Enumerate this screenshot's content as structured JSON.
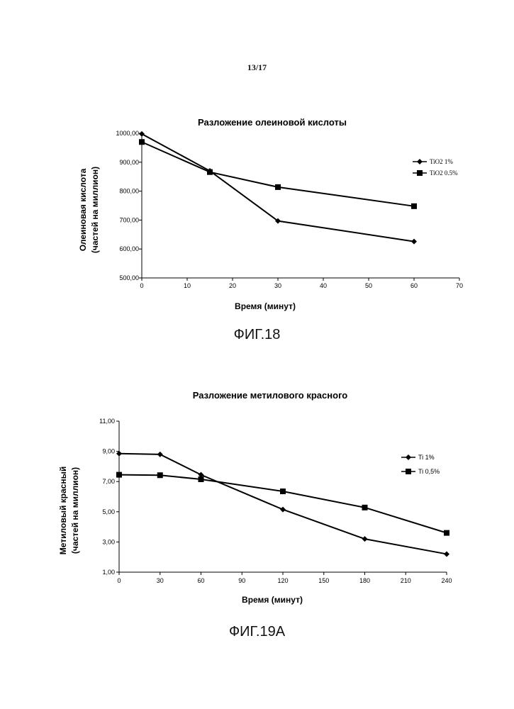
{
  "page": {
    "number": "13/17"
  },
  "figures": [
    {
      "caption": "ФИГ.18"
    },
    {
      "caption": "ФИГ.19А"
    }
  ],
  "chart_data": [
    {
      "type": "line",
      "title": "Разложение олеиновой кислоты",
      "xlabel": "Время (минут)",
      "ylabel_lines": [
        "Олеиновая кислота",
        "(частей на миллион)"
      ],
      "xlim": [
        0,
        70
      ],
      "ylim": [
        500,
        1000
      ],
      "x_ticks": [
        "0",
        "10",
        "20",
        "30",
        "40",
        "50",
        "60",
        "70"
      ],
      "y_ticks": [
        "500,00",
        "600,00",
        "700,00",
        "800,00",
        "900,00",
        "1000,00"
      ],
      "legend_position": "right",
      "grid": false,
      "series": [
        {
          "name": "TiO2 1%",
          "marker": "diamond",
          "x": [
            0,
            15,
            30,
            60
          ],
          "y": [
            998,
            870,
            697,
            626
          ]
        },
        {
          "name": "TiO2 0.5%",
          "marker": "square",
          "x": [
            0,
            15,
            30,
            60
          ],
          "y": [
            970,
            866,
            814,
            748
          ]
        }
      ]
    },
    {
      "type": "line",
      "title": "Разложение метилового красного",
      "xlabel": "Время (минут)",
      "ylabel_lines": [
        "Метиловый красный",
        "(частей на миллион)"
      ],
      "xlim": [
        0,
        240
      ],
      "ylim": [
        1,
        11
      ],
      "x_ticks": [
        "0",
        "30",
        "60",
        "90",
        "120",
        "150",
        "180",
        "210",
        "240"
      ],
      "y_ticks": [
        "1,00",
        "3,00",
        "5,00",
        "7,00",
        "9,00",
        "11,00"
      ],
      "legend_position": "right",
      "grid": false,
      "series": [
        {
          "name": "Ti 1%",
          "marker": "diamond",
          "x": [
            0,
            30,
            60,
            120,
            180,
            240
          ],
          "y": [
            8.85,
            8.8,
            7.45,
            5.15,
            3.2,
            2.2
          ]
        },
        {
          "name": "Ti 0,5%",
          "marker": "square",
          "x": [
            0,
            30,
            60,
            120,
            180,
            240
          ],
          "y": [
            7.45,
            7.42,
            7.15,
            6.35,
            5.28,
            3.6
          ]
        }
      ]
    }
  ]
}
